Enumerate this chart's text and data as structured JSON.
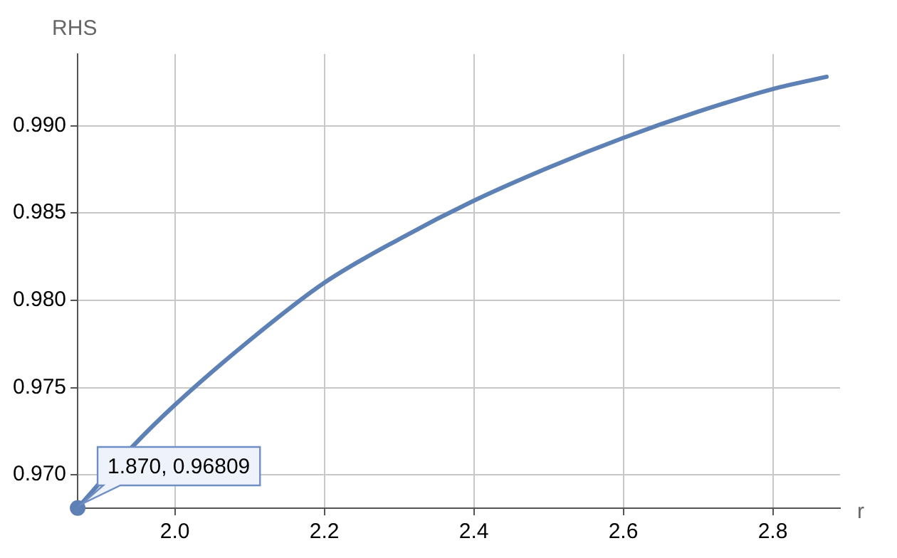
{
  "chart_data": {
    "type": "line",
    "xlabel": "r",
    "ylabel": "RHS",
    "series": [
      {
        "color": "#5e81b5",
        "x": [
          1.87,
          1.943,
          2.0,
          2.1,
          2.2,
          2.3,
          2.4,
          2.5,
          2.6,
          2.7,
          2.8,
          2.872
        ],
        "values": [
          0.9681,
          0.9716,
          0.974,
          0.9777,
          0.981,
          0.9835,
          0.9857,
          0.9876,
          0.9893,
          0.9908,
          0.9921,
          0.9928
        ]
      },
      {
        "type": "scatter",
        "marker": "circle",
        "color": "#5e81b5",
        "x": [
          1.87
        ],
        "values": [
          0.9681
        ]
      }
    ],
    "xlim": [
      1.87,
      2.89
    ],
    "ylim": [
      0.96809,
      0.9941
    ],
    "xticks": [
      {
        "value": 2.0,
        "label": "2.0"
      },
      2.2,
      2.4,
      2.6,
      2.8
    ],
    "yticks": [
      {
        "value": 0.97,
        "label": "0.970"
      },
      0.975,
      {
        "value": 0.98,
        "label": "0.980"
      },
      0.985,
      {
        "value": 0.99,
        "label": "0.990"
      }
    ],
    "grid": true,
    "line_style": "solid",
    "annotations": [
      {
        "text": "1.870, 0.96809",
        "x": 1.87,
        "y": 0.96809
      }
    ]
  }
}
